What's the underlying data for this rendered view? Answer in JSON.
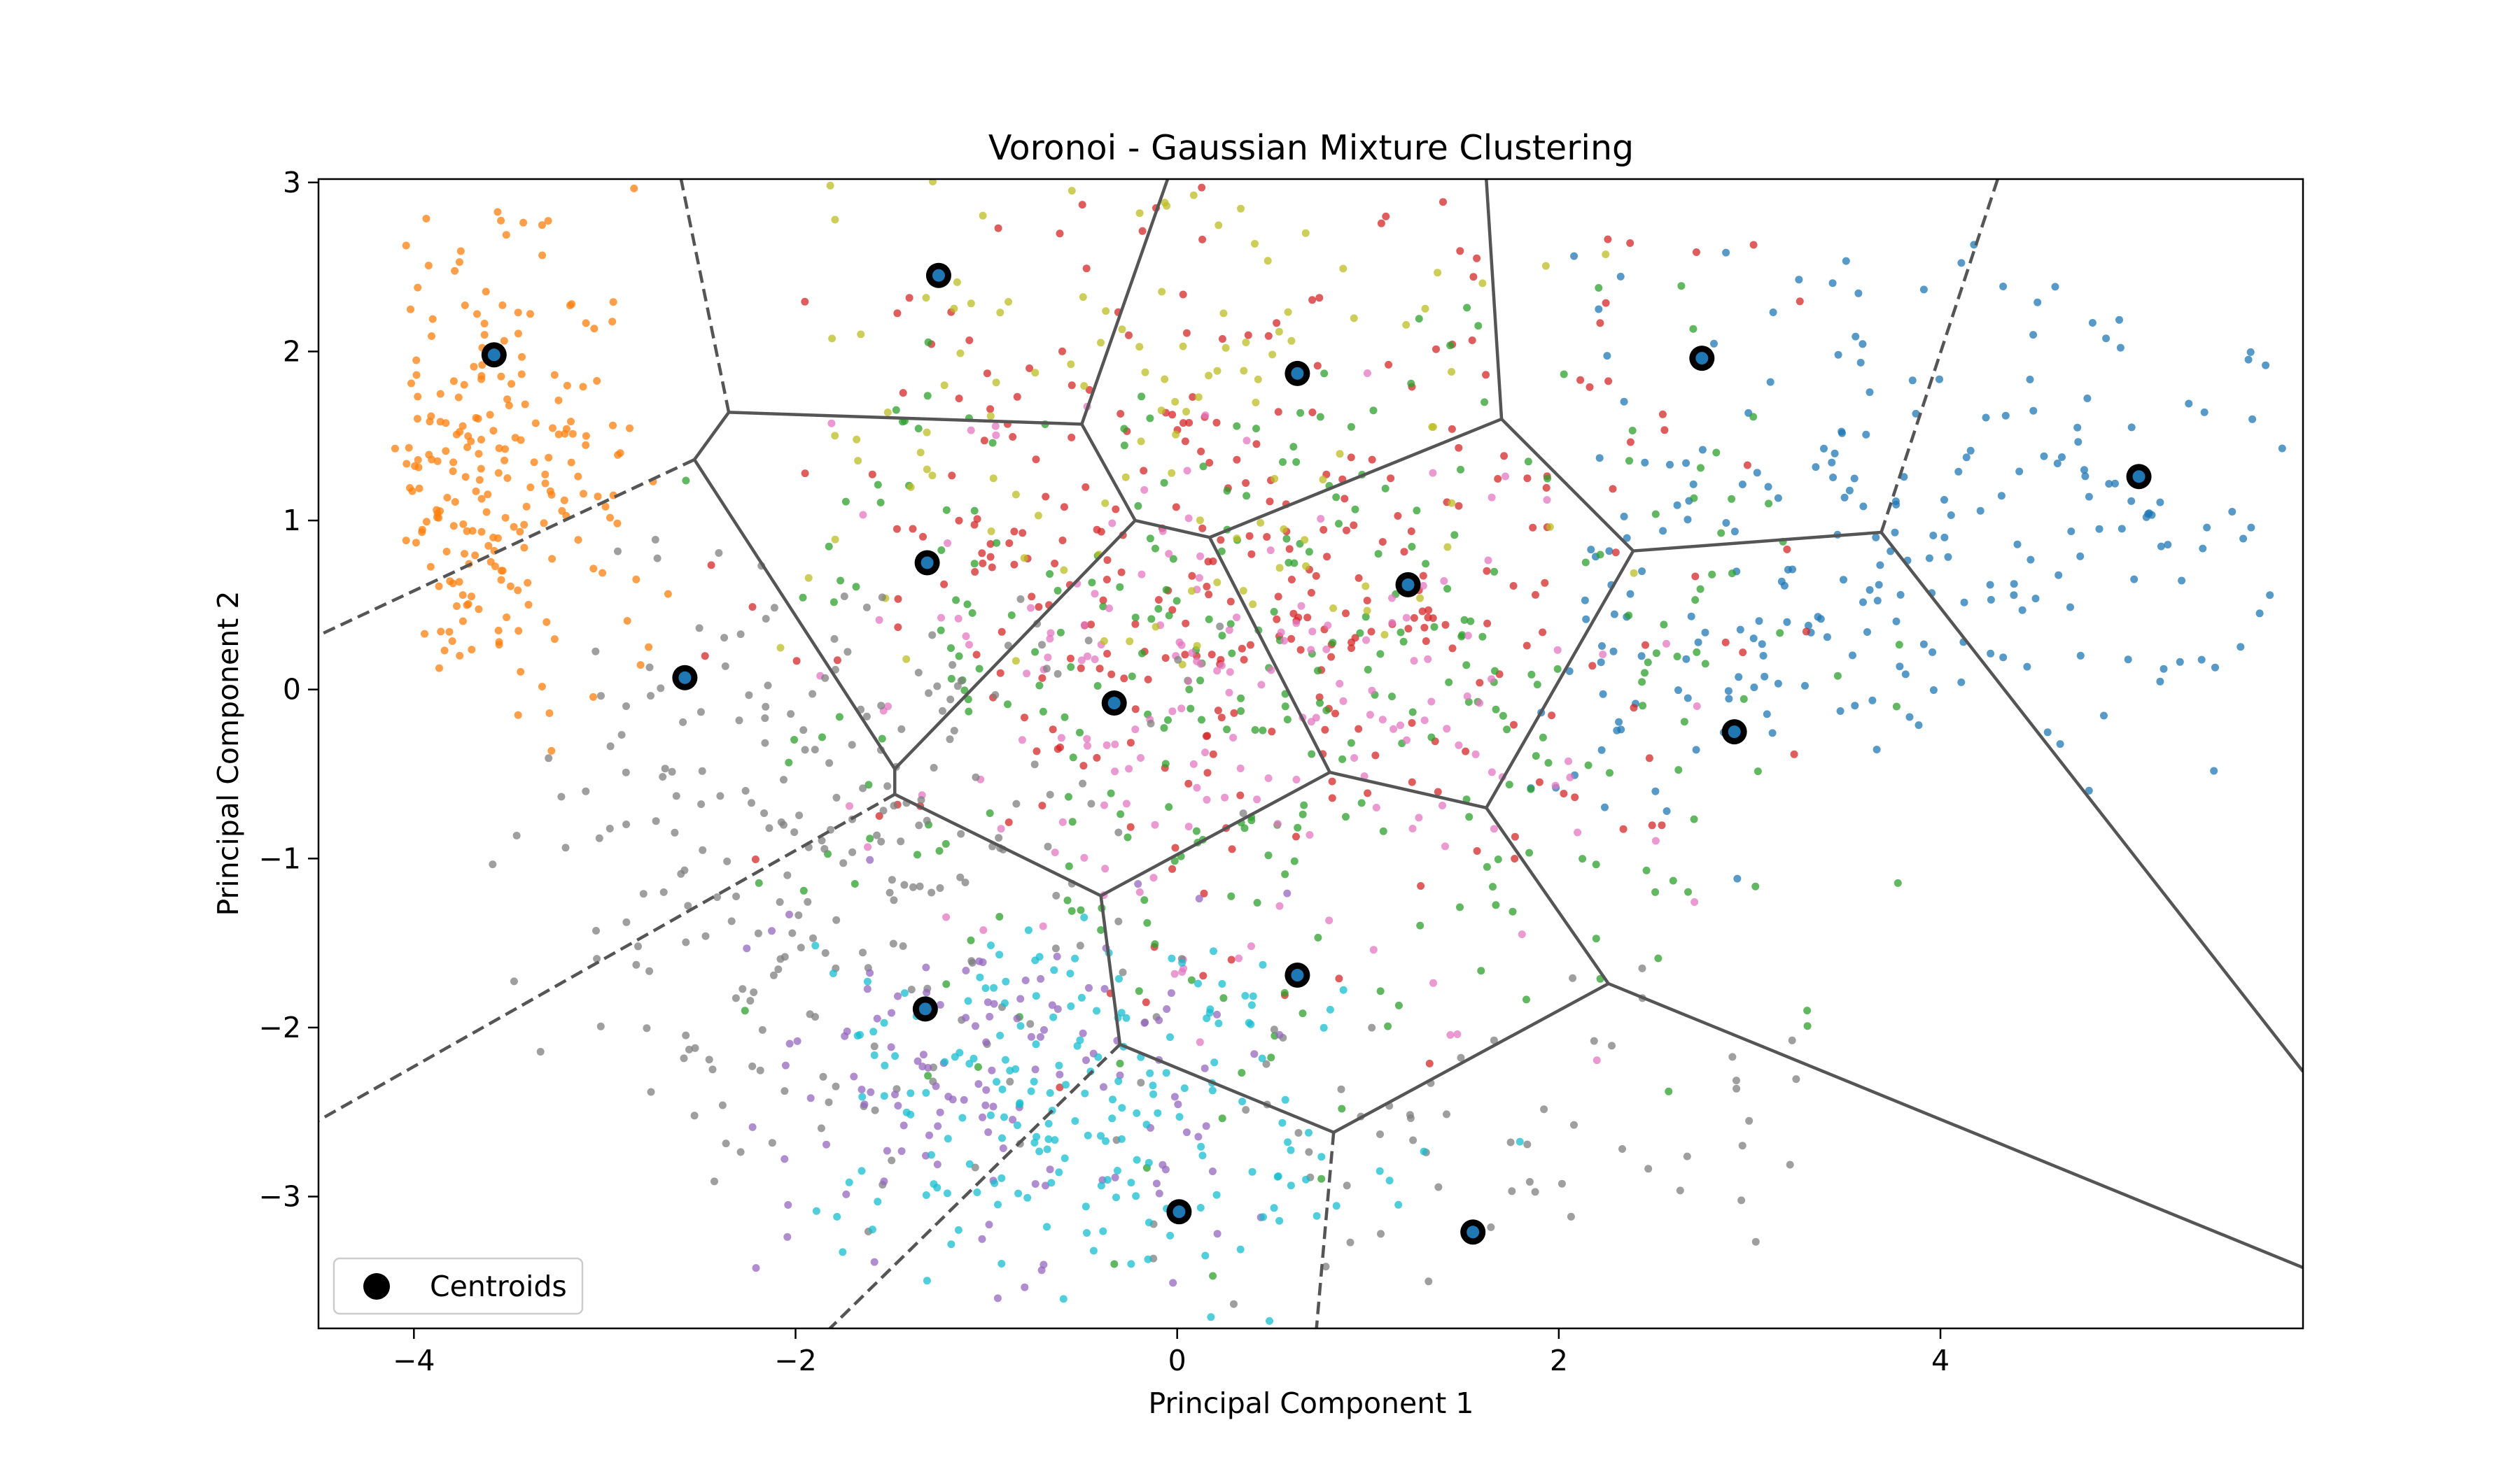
{
  "chart_data": {
    "type": "scatter",
    "title": "Voronoi - Gaussian Mixture Clustering",
    "xlabel": "Principal Component 1",
    "ylabel": "Principal Component 2",
    "xlim": [
      -4.5,
      5.9
    ],
    "ylim": [
      -3.78,
      3.02
    ],
    "x_ticks": [
      -4,
      -2,
      0,
      2,
      4
    ],
    "y_ticks": [
      -3,
      -2,
      -1,
      0,
      1,
      2,
      3
    ],
    "x_tick_labels": [
      "−4",
      "−2",
      "0",
      "2",
      "4"
    ],
    "y_tick_labels": [
      "−3",
      "−2",
      "−1",
      "0",
      "1",
      "2",
      "3"
    ],
    "grid": false,
    "legend": {
      "position": "lower-left",
      "label": "Centroids"
    },
    "centroids": [
      {
        "x": -3.58,
        "y": 1.98,
        "color": "#1f77b4"
      },
      {
        "x": -1.25,
        "y": 2.45,
        "color": "#1f77b4"
      },
      {
        "x": 0.63,
        "y": 1.87,
        "color": "#1f77b4"
      },
      {
        "x": 2.75,
        "y": 1.96,
        "color": "#1f77b4"
      },
      {
        "x": 5.04,
        "y": 1.26,
        "color": "#1f77b4"
      },
      {
        "x": -1.31,
        "y": 0.75,
        "color": "#1f77b4"
      },
      {
        "x": 1.21,
        "y": 0.62,
        "color": "#1f77b4"
      },
      {
        "x": -2.58,
        "y": 0.07,
        "color": "#1f77b4"
      },
      {
        "x": -0.33,
        "y": -0.08,
        "color": "#1f77b4"
      },
      {
        "x": 2.92,
        "y": -0.25,
        "color": "#1f77b4"
      },
      {
        "x": 0.63,
        "y": -1.69,
        "color": "#1f77b4"
      },
      {
        "x": -1.32,
        "y": -1.89,
        "color": "#1f77b4"
      },
      {
        "x": 0.01,
        "y": -3.09,
        "color": "#1f77b4"
      },
      {
        "x": 1.55,
        "y": -3.21,
        "color": "#1f77b4"
      }
    ],
    "voronoi_vertices": [
      [
        -2.53,
        1.36
      ],
      [
        -2.35,
        1.64
      ],
      [
        -0.5,
        1.57
      ],
      [
        -0.22,
        1.0
      ],
      [
        0.17,
        0.9
      ],
      [
        1.7,
        1.6
      ],
      [
        2.39,
        0.82
      ],
      [
        3.69,
        0.93
      ],
      [
        -1.48,
        -0.47
      ],
      [
        -1.48,
        -0.62
      ],
      [
        0.8,
        -0.49
      ],
      [
        1.62,
        -0.7
      ],
      [
        -0.4,
        -1.22
      ],
      [
        2.26,
        -1.74
      ],
      [
        -0.3,
        -2.1
      ],
      [
        0.82,
        -2.62
      ]
    ],
    "voronoi_edges": [
      [
        0,
        1
      ],
      [
        1,
        2
      ],
      [
        2,
        3
      ],
      [
        3,
        4
      ],
      [
        4,
        5
      ],
      [
        5,
        6
      ],
      [
        6,
        7
      ],
      [
        0,
        8
      ],
      [
        8,
        9
      ],
      [
        8,
        3
      ],
      [
        4,
        10
      ],
      [
        10,
        11
      ],
      [
        11,
        6
      ],
      [
        10,
        12
      ],
      [
        9,
        12
      ],
      [
        12,
        14
      ],
      [
        14,
        15
      ],
      [
        15,
        13
      ],
      [
        13,
        11
      ]
    ],
    "voronoi_rays_solid": [
      [
        [
          -0.5,
          1.57
        ],
        [
          -0.05,
          3.02
        ]
      ],
      [
        [
          1.7,
          1.6
        ],
        [
          1.62,
          3.02
        ]
      ],
      [
        [
          3.69,
          0.93
        ],
        [
          5.9,
          -2.26
        ]
      ],
      [
        [
          2.26,
          -1.74
        ],
        [
          5.9,
          -3.42
        ]
      ]
    ],
    "voronoi_rays_dashed": [
      [
        [
          -2.35,
          1.64
        ],
        [
          -2.6,
          3.02
        ]
      ],
      [
        [
          -2.53,
          1.36
        ],
        [
          -4.5,
          0.32
        ]
      ],
      [
        [
          -1.48,
          -0.62
        ],
        [
          -4.5,
          -2.55
        ]
      ],
      [
        [
          -0.3,
          -2.1
        ],
        [
          -1.82,
          -3.78
        ]
      ],
      [
        [
          0.82,
          -2.62
        ],
        [
          0.73,
          -3.78
        ]
      ],
      [
        [
          3.69,
          0.93
        ],
        [
          4.3,
          3.02
        ]
      ]
    ],
    "clusters": [
      {
        "color": "#ff7f0e",
        "n": 220,
        "center": [
          -3.55,
          1.3
        ],
        "spread": [
          0.33,
          0.75
        ],
        "xlim": [
          -4.1,
          -2.4
        ],
        "ylim": [
          -0.5,
          3.02
        ]
      },
      {
        "color": "#1f77b4",
        "n": 170,
        "center": [
          4.2,
          1.0
        ],
        "spread": [
          1.0,
          0.9
        ],
        "xlim": [
          2.0,
          5.9
        ],
        "ylim": [
          -0.8,
          2.7
        ]
      },
      {
        "color": "#1f77b4",
        "n": 70,
        "center": [
          2.6,
          0.3
        ],
        "spread": [
          0.6,
          0.7
        ],
        "xlim": [
          1.8,
          4.0
        ],
        "ylim": [
          -1.5,
          1.4
        ]
      },
      {
        "color": "#d62728",
        "n": 330,
        "center": [
          0.4,
          0.8
        ],
        "spread": [
          1.3,
          1.1
        ],
        "xlim": [
          -2.5,
          3.3
        ],
        "ylim": [
          -2.6,
          3.02
        ]
      },
      {
        "color": "#2ca02c",
        "n": 330,
        "center": [
          0.7,
          0.0
        ],
        "spread": [
          1.4,
          1.2
        ],
        "xlim": [
          -2.6,
          3.9
        ],
        "ylim": [
          -3.6,
          2.7
        ]
      },
      {
        "color": "#e377c2",
        "n": 180,
        "center": [
          0.3,
          -0.1
        ],
        "spread": [
          1.2,
          0.8
        ],
        "xlim": [
          -2.0,
          3.0
        ],
        "ylim": [
          -2.3,
          2.2
        ]
      },
      {
        "color": "#bcbd22",
        "n": 120,
        "center": [
          -0.2,
          1.7
        ],
        "spread": [
          1.2,
          0.8
        ],
        "xlim": [
          -2.3,
          2.6
        ],
        "ylim": [
          0.0,
          3.02
        ]
      },
      {
        "color": "#7f7f7f",
        "n": 240,
        "center": [
          -1.9,
          -1.0
        ],
        "spread": [
          0.9,
          1.0
        ],
        "xlim": [
          -3.6,
          0.4
        ],
        "ylim": [
          -3.6,
          1.0
        ]
      },
      {
        "color": "#7f7f7f",
        "n": 60,
        "center": [
          1.5,
          -2.6
        ],
        "spread": [
          1.0,
          0.6
        ],
        "xlim": [
          -0.2,
          3.4
        ],
        "ylim": [
          -3.78,
          -1.6
        ]
      },
      {
        "color": "#9467bd",
        "n": 130,
        "center": [
          -1.0,
          -2.3
        ],
        "spread": [
          0.8,
          0.55
        ],
        "xlim": [
          -2.3,
          1.0
        ],
        "ylim": [
          -3.78,
          -1.0
        ]
      },
      {
        "color": "#17becf",
        "n": 200,
        "center": [
          -0.6,
          -2.5
        ],
        "spread": [
          0.85,
          0.6
        ],
        "xlim": [
          -1.9,
          2.0
        ],
        "ylim": [
          -3.78,
          -1.2
        ]
      }
    ]
  }
}
